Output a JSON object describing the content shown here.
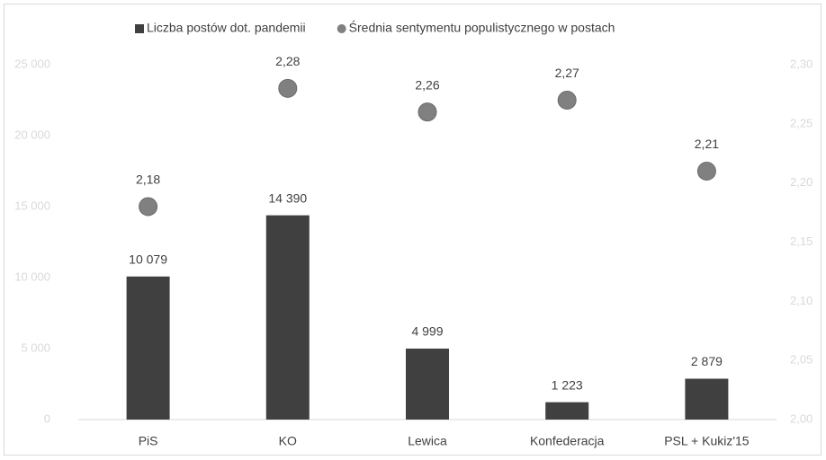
{
  "chart_data": {
    "type": "bar",
    "categories": [
      "PiS",
      "KO",
      "Lewica",
      "Konfederacja",
      "PSL + Kukiz'15"
    ],
    "series": [
      {
        "name": "Liczba postów dot. pandemii",
        "type": "bar",
        "color": "#404040",
        "values": [
          10079,
          14390,
          4999,
          1223,
          2879
        ],
        "value_labels": [
          "10 079",
          "14 390",
          "4 999",
          "1 223",
          "2 879"
        ]
      },
      {
        "name": "Średnia sentymentu populistycznego w postach",
        "type": "scatter",
        "axis": "y2",
        "color": "#808080",
        "values": [
          2.18,
          2.28,
          2.26,
          2.27,
          2.21
        ],
        "value_labels": [
          "2,18",
          "2,28",
          "2,26",
          "2,27",
          "2,21"
        ]
      }
    ],
    "ylim": [
      0,
      25000
    ],
    "yticks": [
      0,
      {
        "value": 5000,
        "label": "5 000"
      },
      {
        "value": 10000,
        "label": "10 000"
      },
      {
        "value": 15000,
        "label": "15 000"
      },
      {
        "value": 20000,
        "label": "20 000"
      },
      {
        "value": 25000,
        "label": "25 000"
      }
    ],
    "y2lim": [
      2.0,
      2.3
    ],
    "y2ticks": [
      {
        "value": 2.0,
        "label": "2,00"
      },
      {
        "value": 2.05,
        "label": "2,05"
      },
      {
        "value": 2.1,
        "label": "2,10"
      },
      {
        "value": 2.15,
        "label": "2,15"
      },
      {
        "value": 2.2,
        "label": "2,20"
      },
      {
        "value": 2.25,
        "label": "2,25"
      },
      {
        "value": 2.3,
        "label": "2,30"
      }
    ],
    "legend": "top"
  }
}
